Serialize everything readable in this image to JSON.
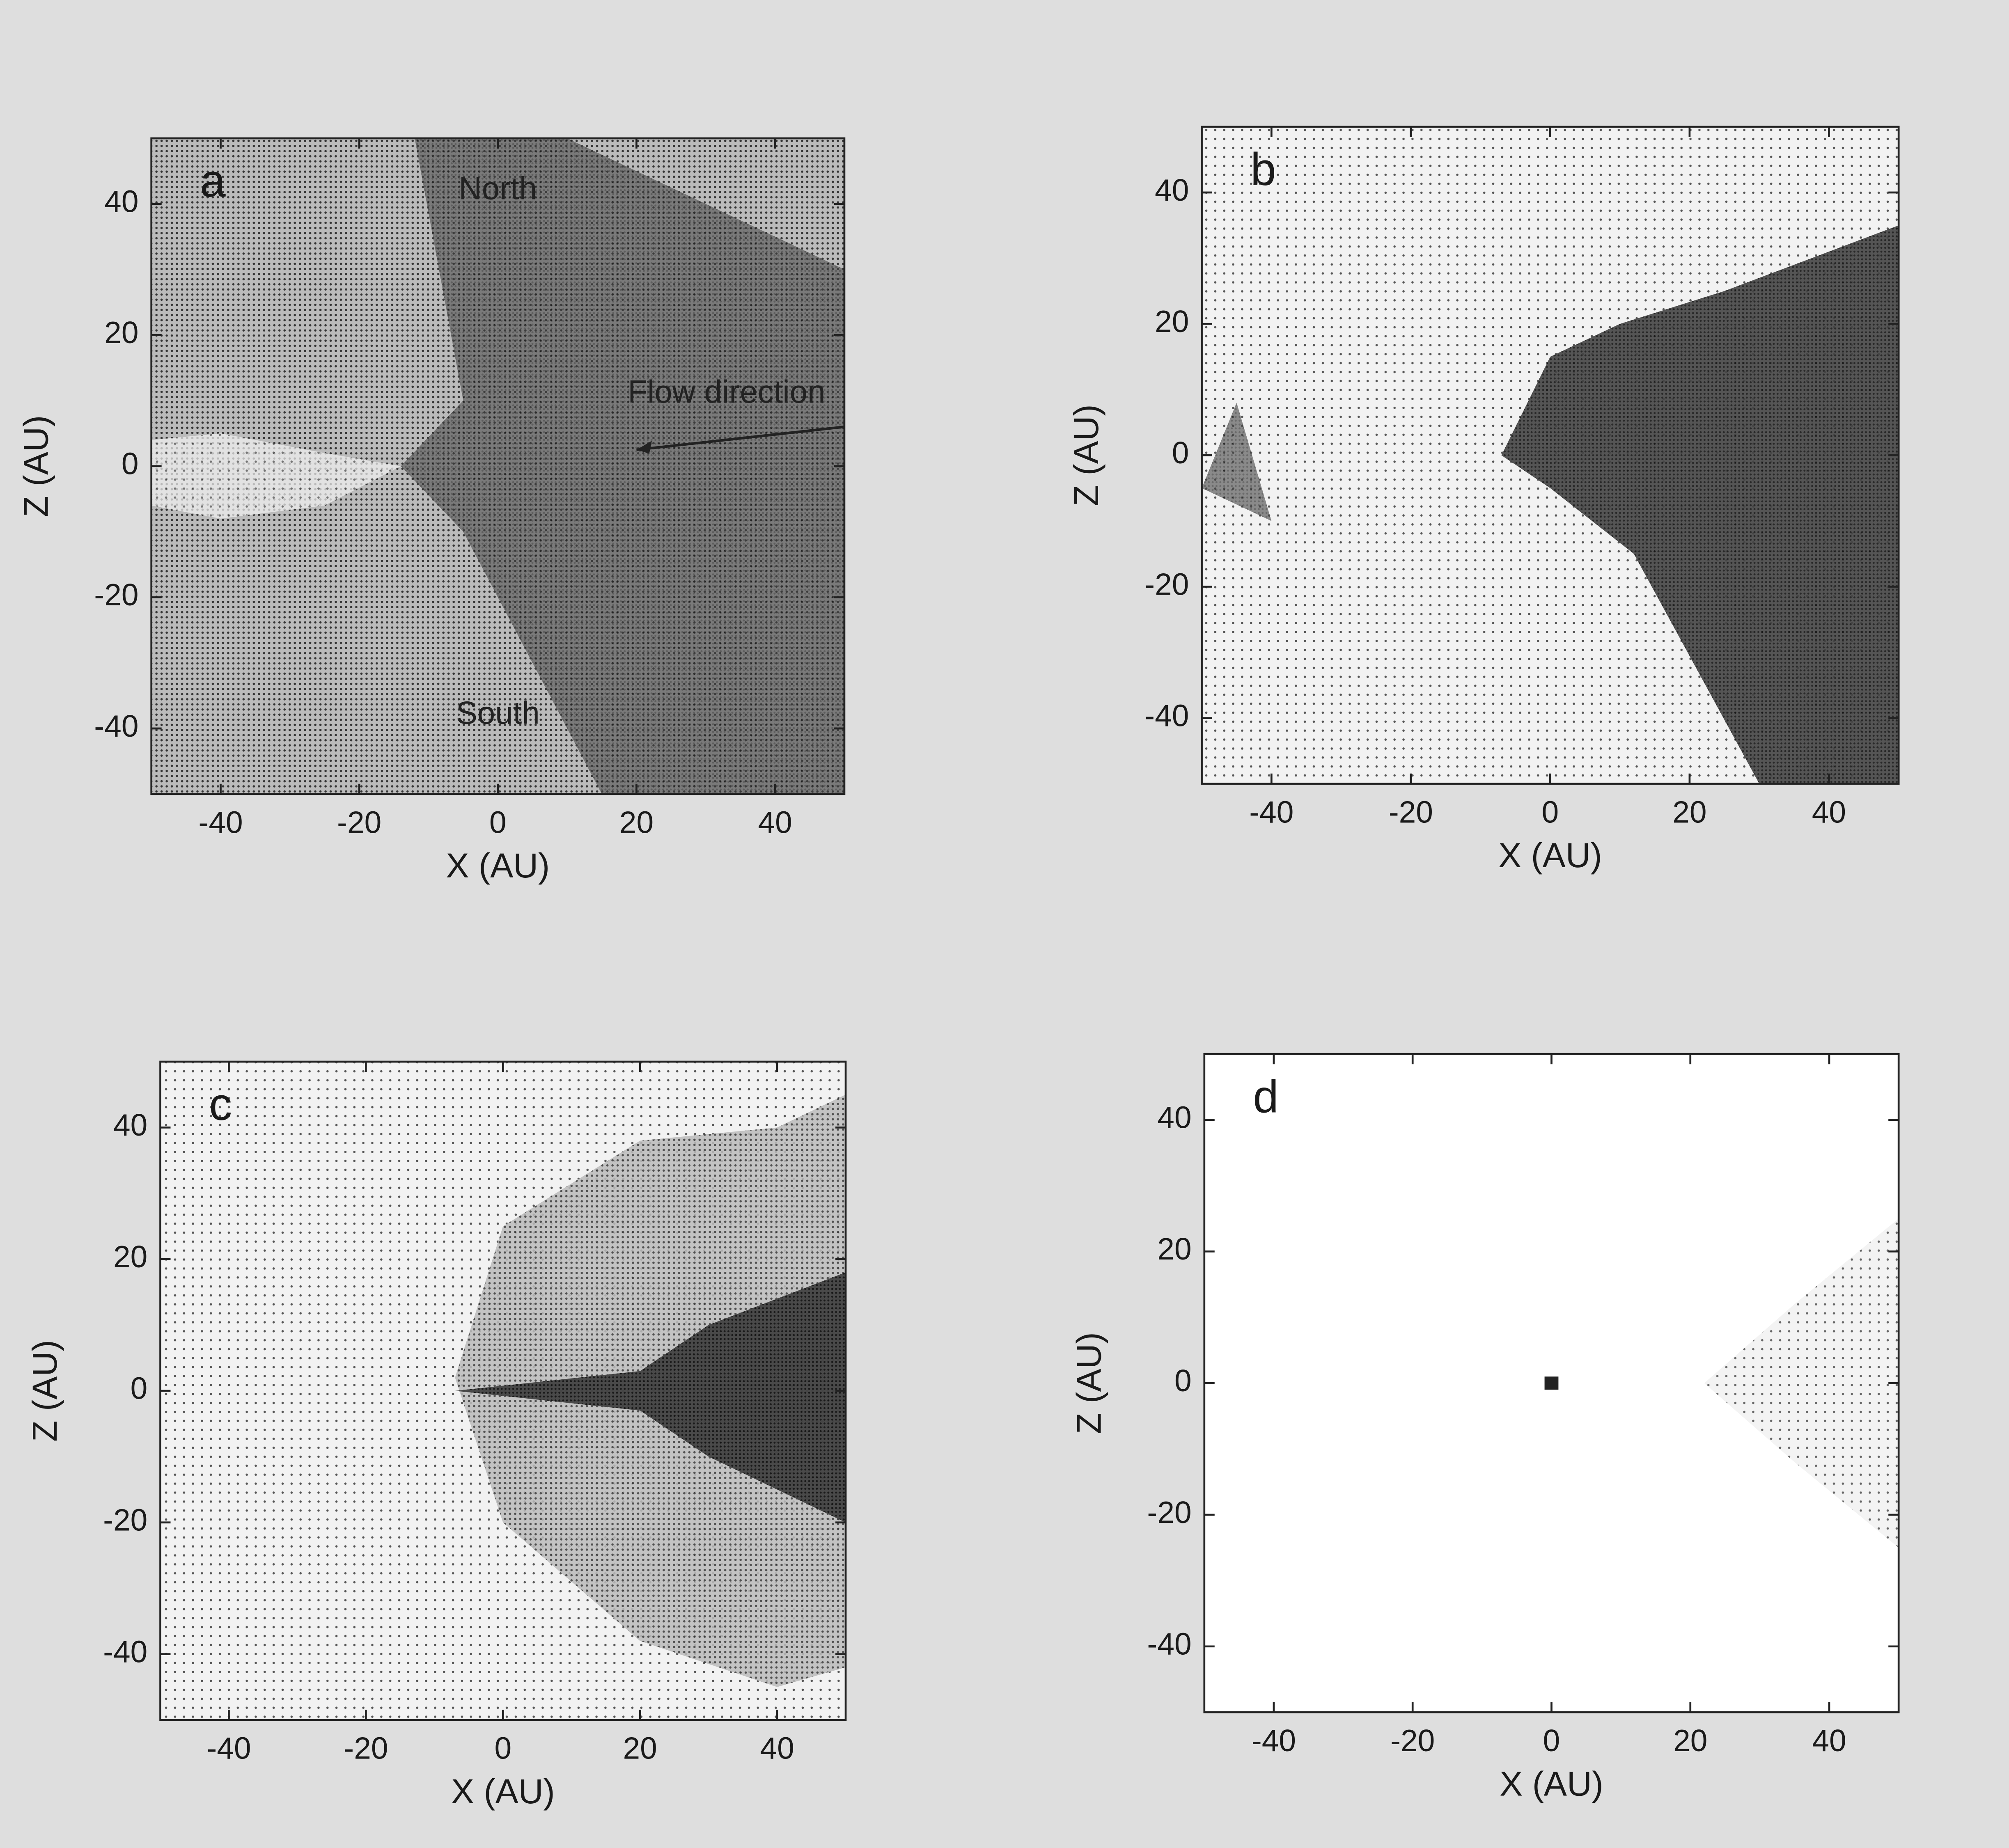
{
  "chart_data": [
    {
      "type": "scatter",
      "panel_label": "a",
      "xlabel": "X (AU)",
      "ylabel": "Z (AU)",
      "xlim": [
        -50,
        50
      ],
      "ylim": [
        -50,
        50
      ],
      "xticks": [
        -40,
        -20,
        0,
        20,
        40
      ],
      "yticks": [
        -40,
        -20,
        0,
        20,
        40
      ],
      "annotations": [
        "North",
        "South",
        "Flow direction"
      ]
    },
    {
      "type": "scatter",
      "panel_label": "b",
      "xlabel": "X (AU)",
      "ylabel": "Z (AU)",
      "xlim": [
        -50,
        50
      ],
      "ylim": [
        -50,
        50
      ],
      "xticks": [
        -40,
        -20,
        0,
        20,
        40
      ],
      "yticks": [
        -40,
        -20,
        0,
        20,
        40
      ]
    },
    {
      "type": "scatter",
      "panel_label": "c",
      "xlabel": "X (AU)",
      "ylabel": "Z (AU)",
      "xlim": [
        -50,
        50
      ],
      "ylim": [
        -50,
        50
      ],
      "xticks": [
        -40,
        -20,
        0,
        20,
        40
      ],
      "yticks": [
        -40,
        -20,
        0,
        20,
        40
      ]
    },
    {
      "type": "scatter",
      "panel_label": "d",
      "xlabel": "X (AU)",
      "ylabel": "Z (AU)",
      "xlim": [
        -50,
        50
      ],
      "ylim": [
        -50,
        50
      ],
      "xticks": [
        -40,
        -20,
        0,
        20,
        40
      ],
      "yticks": [
        -40,
        -20,
        0,
        20,
        40
      ]
    }
  ]
}
